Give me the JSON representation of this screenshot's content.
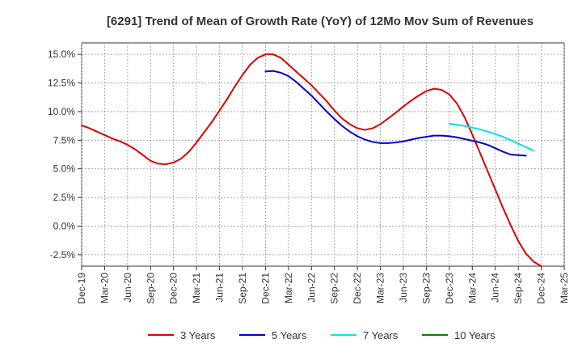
{
  "chart_data": {
    "type": "line",
    "title": "[6291]  Trend of Mean of Growth Rate (YoY) of 12Mo Mov Sum of Revenues",
    "xlabel": "",
    "ylabel": "",
    "ylim": [
      -3.5,
      16.0
    ],
    "yticks": [
      15.0,
      12.5,
      10.0,
      7.5,
      5.0,
      2.5,
      0.0,
      -2.5
    ],
    "ytick_labels": [
      "15.0%",
      "12.5%",
      "10.0%",
      "7.5%",
      "5.0%",
      "2.5%",
      "0.0%",
      "-2.5%"
    ],
    "x_tick_labels": [
      "Dec-19",
      "Mar-20",
      "Jun-20",
      "Sep-20",
      "Dec-20",
      "Mar-21",
      "Jun-21",
      "Sep-21",
      "Dec-21",
      "Mar-22",
      "Jun-22",
      "Sep-22",
      "Dec-22",
      "Mar-23",
      "Jun-23",
      "Sep-23",
      "Dec-23",
      "Mar-24",
      "Jun-24",
      "Sep-24",
      "Dec-24",
      "Mar-25"
    ],
    "legend_position": "bottom",
    "grid": true,
    "series": [
      {
        "name": "3 Years",
        "color": "#dd0000",
        "points": [
          [
            0,
            8.8
          ],
          [
            1,
            8.55
          ],
          [
            2,
            8.25
          ],
          [
            3,
            7.95
          ],
          [
            4,
            7.65
          ],
          [
            5,
            7.4
          ],
          [
            6,
            7.1
          ],
          [
            7,
            6.7
          ],
          [
            8,
            6.2
          ],
          [
            9,
            5.7
          ],
          [
            10,
            5.45
          ],
          [
            11,
            5.4
          ],
          [
            12,
            5.55
          ],
          [
            13,
            5.9
          ],
          [
            14,
            6.5
          ],
          [
            15,
            7.3
          ],
          [
            16,
            8.2
          ],
          [
            17,
            9.1
          ],
          [
            18,
            10.1
          ],
          [
            19,
            11.1
          ],
          [
            20,
            12.2
          ],
          [
            21,
            13.2
          ],
          [
            22,
            14.1
          ],
          [
            23,
            14.7
          ],
          [
            24,
            15.0
          ],
          [
            25,
            15.0
          ],
          [
            26,
            14.7
          ],
          [
            27,
            14.1
          ],
          [
            28,
            13.5
          ],
          [
            29,
            12.9
          ],
          [
            30,
            12.3
          ],
          [
            31,
            11.6
          ],
          [
            32,
            10.9
          ],
          [
            33,
            10.1
          ],
          [
            34,
            9.4
          ],
          [
            35,
            8.9
          ],
          [
            36,
            8.55
          ],
          [
            37,
            8.4
          ],
          [
            38,
            8.55
          ],
          [
            39,
            8.9
          ],
          [
            40,
            9.4
          ],
          [
            41,
            9.9
          ],
          [
            42,
            10.45
          ],
          [
            43,
            10.95
          ],
          [
            44,
            11.4
          ],
          [
            45,
            11.8
          ],
          [
            46,
            12.0
          ],
          [
            47,
            11.9
          ],
          [
            48,
            11.5
          ],
          [
            49,
            10.7
          ],
          [
            50,
            9.5
          ],
          [
            51,
            8.0
          ],
          [
            52,
            6.4
          ],
          [
            53,
            4.8
          ],
          [
            54,
            3.2
          ],
          [
            55,
            1.6
          ],
          [
            56,
            0.1
          ],
          [
            57,
            -1.3
          ],
          [
            58,
            -2.4
          ],
          [
            59,
            -3.1
          ],
          [
            60,
            -3.5
          ]
        ]
      },
      {
        "name": "5 Years",
        "color": "#0000cc",
        "points": [
          [
            24,
            13.5
          ],
          [
            25,
            13.55
          ],
          [
            26,
            13.4
          ],
          [
            27,
            13.1
          ],
          [
            28,
            12.6
          ],
          [
            29,
            12.0
          ],
          [
            30,
            11.4
          ],
          [
            31,
            10.7
          ],
          [
            32,
            10.0
          ],
          [
            33,
            9.35
          ],
          [
            34,
            8.75
          ],
          [
            35,
            8.25
          ],
          [
            36,
            7.85
          ],
          [
            37,
            7.55
          ],
          [
            38,
            7.35
          ],
          [
            39,
            7.25
          ],
          [
            40,
            7.25
          ],
          [
            41,
            7.3
          ],
          [
            42,
            7.4
          ],
          [
            43,
            7.55
          ],
          [
            44,
            7.7
          ],
          [
            45,
            7.8
          ],
          [
            46,
            7.9
          ],
          [
            47,
            7.9
          ],
          [
            48,
            7.85
          ],
          [
            49,
            7.75
          ],
          [
            50,
            7.6
          ],
          [
            51,
            7.45
          ],
          [
            52,
            7.3
          ],
          [
            53,
            7.1
          ],
          [
            54,
            6.8
          ],
          [
            55,
            6.5
          ],
          [
            56,
            6.25
          ],
          [
            57,
            6.2
          ],
          [
            58,
            6.15
          ]
        ]
      },
      {
        "name": "7 Years",
        "color": "#00e5e5",
        "points": [
          [
            48,
            8.95
          ],
          [
            49,
            8.85
          ],
          [
            50,
            8.75
          ],
          [
            51,
            8.6
          ],
          [
            52,
            8.45
          ],
          [
            53,
            8.25
          ],
          [
            54,
            8.05
          ],
          [
            55,
            7.8
          ],
          [
            56,
            7.5
          ],
          [
            57,
            7.2
          ],
          [
            58,
            6.9
          ],
          [
            59,
            6.6
          ]
        ]
      },
      {
        "name": "10 Years",
        "color": "#008800",
        "points": []
      }
    ]
  }
}
